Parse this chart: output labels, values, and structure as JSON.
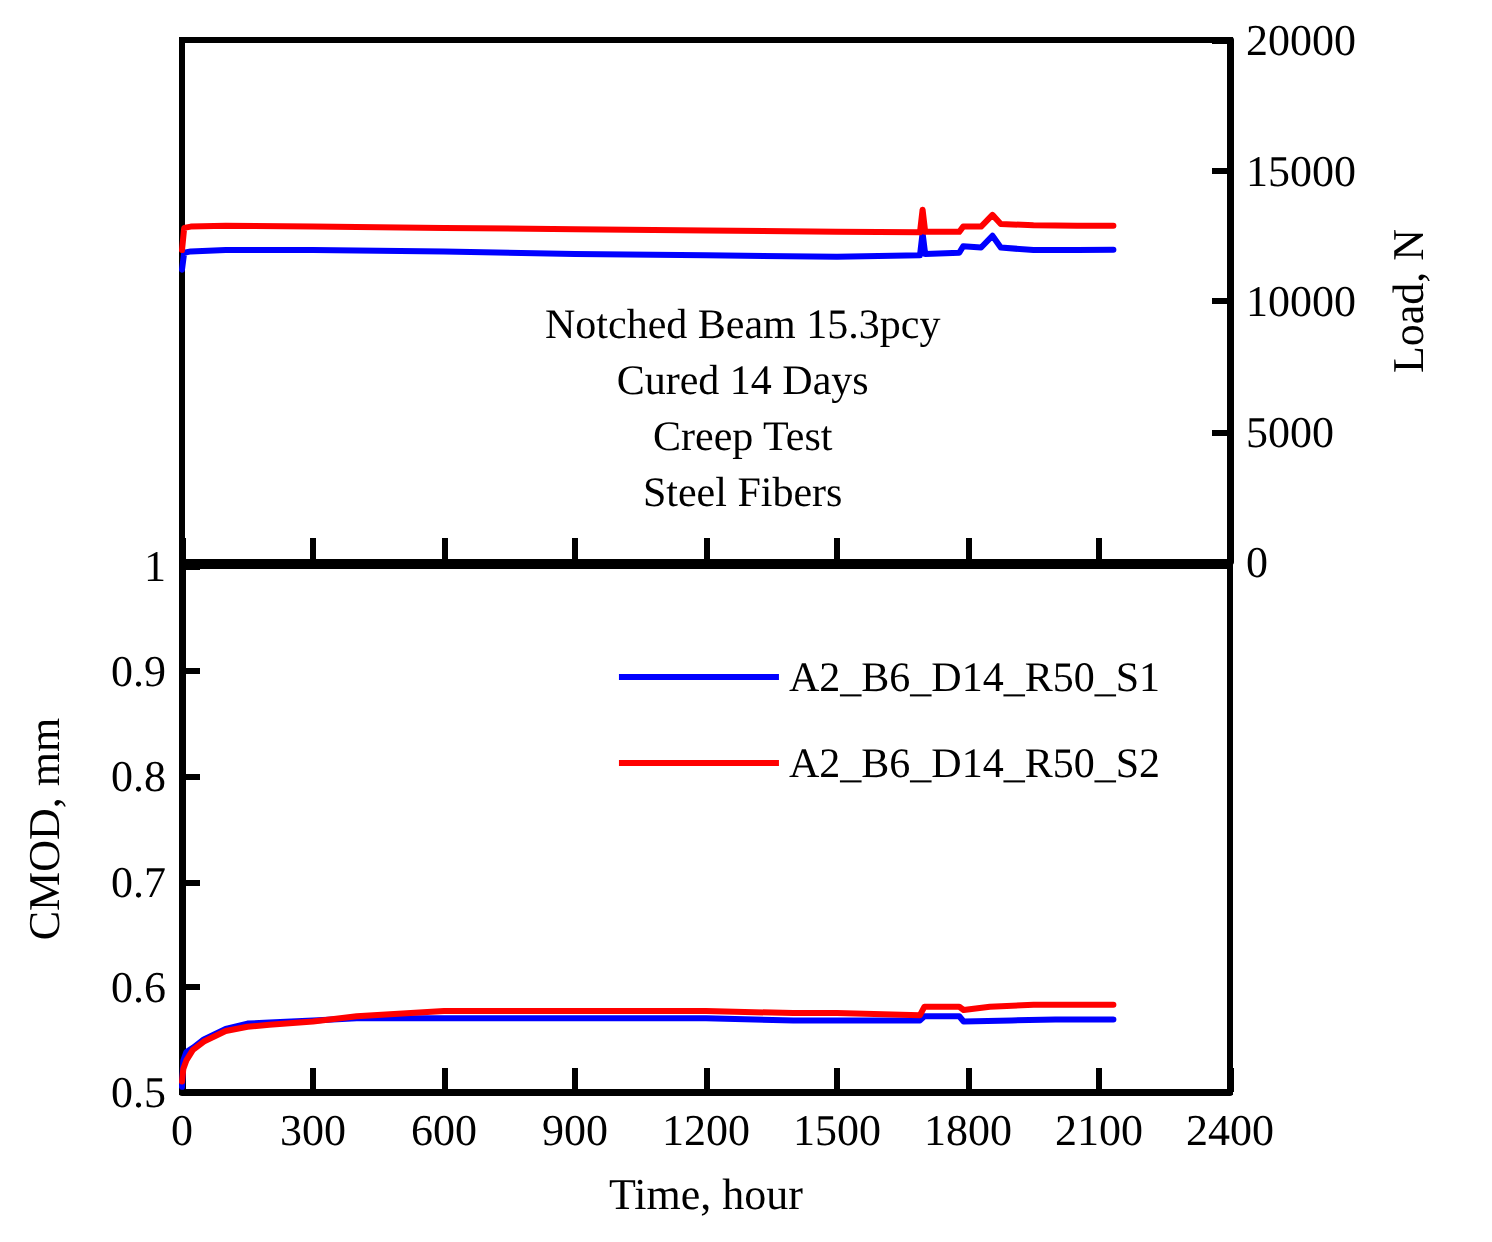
{
  "chart_data": [
    {
      "type": "line",
      "xlim": [
        0,
        2400
      ],
      "xticks": [
        0,
        300,
        600,
        900,
        1200,
        1500,
        1800,
        2100,
        2400
      ],
      "tick_labels": "y",
      "ylim": [
        0,
        20000
      ],
      "yticks": [
        0,
        5000,
        10000,
        15000,
        20000
      ],
      "ylabel": "Load, N",
      "annotations": [
        "Notched Beam 15.3pcy",
        "Cured 14 Days",
        "Creep Test",
        "Steel Fibers"
      ],
      "grid": false,
      "legend": false,
      "marker": "none",
      "line_style": "solid",
      "series": [
        {
          "color": "#0000ff",
          "x": [
            0,
            5,
            20,
            100,
            300,
            600,
            900,
            1200,
            1500,
            1690,
            1696,
            1702,
            1780,
            1789,
            1830,
            1856,
            1875,
            1950,
            2050,
            2133
          ],
          "values": [
            11200,
            11850,
            11900,
            11950,
            11950,
            11900,
            11800,
            11750,
            11700,
            11750,
            12600,
            11800,
            11850,
            12100,
            12050,
            12500,
            12050,
            11950,
            11950,
            11960
          ]
        },
        {
          "color": "#ff0000",
          "x": [
            0,
            5,
            20,
            100,
            300,
            600,
            900,
            1200,
            1500,
            1690,
            1696,
            1702,
            1780,
            1789,
            1830,
            1856,
            1875,
            1950,
            2050,
            2133
          ],
          "values": [
            11950,
            12800,
            12850,
            12880,
            12850,
            12800,
            12750,
            12700,
            12650,
            12630,
            13500,
            12650,
            12650,
            12850,
            12850,
            13300,
            12950,
            12900,
            12880,
            12880
          ]
        }
      ]
    },
    {
      "type": "line",
      "xlabel": "Time, hour",
      "ylabel": "CMOD, mm",
      "xlim": [
        0,
        2400
      ],
      "xticks": [
        0,
        300,
        600,
        900,
        1200,
        1500,
        1800,
        2100,
        2400
      ],
      "ylim": [
        0.5,
        1
      ],
      "yticks": [
        0.5,
        0.6,
        0.7,
        0.8,
        0.9,
        1
      ],
      "grid": false,
      "legend": "top right",
      "marker": "none",
      "line_style": "solid",
      "series": [
        {
          "name": "A2_B6_D14_R50_S1",
          "color": "#0000ff",
          "x": [
            0,
            3,
            10,
            25,
            50,
            100,
            150,
            200,
            300,
            400,
            600,
            900,
            1200,
            1400,
            1500,
            1690,
            1700,
            1780,
            1790,
            1900,
            2000,
            2133
          ],
          "values": [
            0.505,
            0.53,
            0.538,
            0.542,
            0.55,
            0.56,
            0.565,
            0.566,
            0.568,
            0.57,
            0.57,
            0.57,
            0.57,
            0.568,
            0.568,
            0.568,
            0.572,
            0.572,
            0.567,
            0.568,
            0.569,
            0.569
          ]
        },
        {
          "name": "A2_B6_D14_R50_S2",
          "color": "#ff0000",
          "x": [
            0,
            3,
            10,
            25,
            50,
            100,
            150,
            200,
            300,
            400,
            600,
            900,
            1200,
            1400,
            1500,
            1690,
            1700,
            1780,
            1790,
            1850,
            1950,
            2133
          ],
          "values": [
            0.51,
            0.522,
            0.53,
            0.54,
            0.548,
            0.558,
            0.562,
            0.564,
            0.567,
            0.572,
            0.577,
            0.577,
            0.577,
            0.575,
            0.575,
            0.573,
            0.581,
            0.581,
            0.578,
            0.581,
            0.583,
            0.583
          ]
        }
      ]
    }
  ]
}
